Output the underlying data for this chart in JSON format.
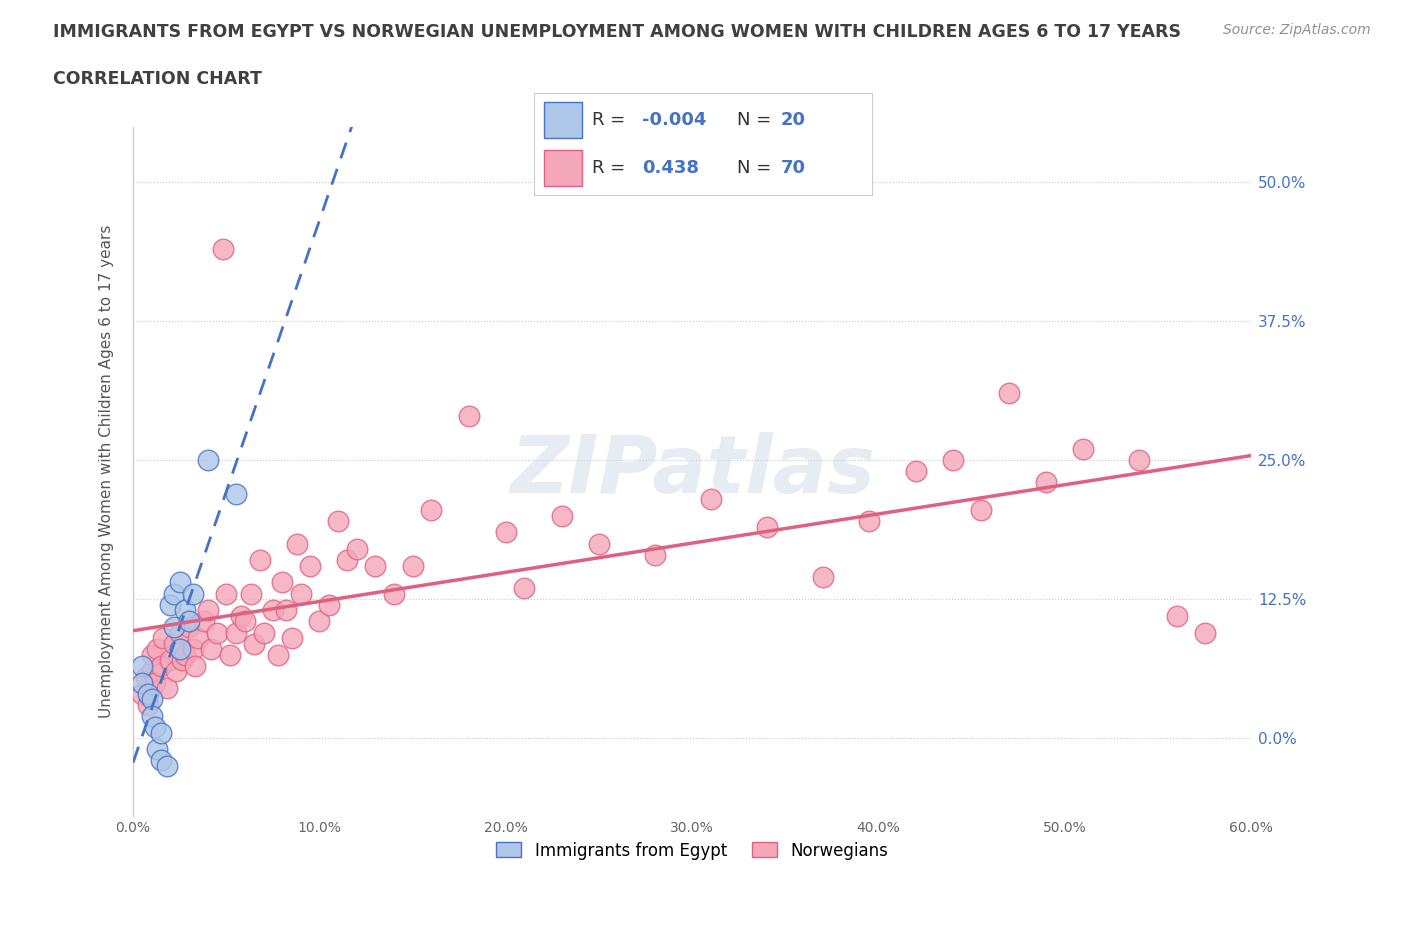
{
  "title_line1": "IMMIGRANTS FROM EGYPT VS NORWEGIAN UNEMPLOYMENT AMONG WOMEN WITH CHILDREN AGES 6 TO 17 YEARS",
  "title_line2": "CORRELATION CHART",
  "source": "Source: ZipAtlas.com",
  "ylabel": "Unemployment Among Women with Children Ages 6 to 17 years",
  "xlim": [
    0.0,
    0.6
  ],
  "ylim": [
    -0.07,
    0.55
  ],
  "yticks": [
    0.0,
    0.125,
    0.25,
    0.375,
    0.5
  ],
  "ytick_labels": [
    "0.0%",
    "12.5%",
    "25.0%",
    "37.5%",
    "50.0%"
  ],
  "xticks": [
    0.0,
    0.1,
    0.2,
    0.3,
    0.4,
    0.5,
    0.6
  ],
  "xtick_labels": [
    "0.0%",
    "10.0%",
    "20.0%",
    "30.0%",
    "40.0%",
    "50.0%",
    "60.0%"
  ],
  "egypt_R": -0.004,
  "egypt_N": 20,
  "norway_R": 0.438,
  "norway_N": 70,
  "egypt_color": "#aec6e8",
  "norway_color": "#f4a7b9",
  "egypt_line_color": "#4472c4",
  "norway_line_color": "#e06080",
  "background_color": "#ffffff",
  "watermark": "ZIPatlas",
  "grid_color": "#c8c8c8",
  "legend_R_color": "#4472c4",
  "title_color": "#404040",
  "source_color": "#909090",
  "egypt_x": [
    0.005,
    0.005,
    0.008,
    0.01,
    0.01,
    0.012,
    0.013,
    0.015,
    0.015,
    0.018,
    0.02,
    0.022,
    0.022,
    0.025,
    0.025,
    0.028,
    0.03,
    0.032,
    0.04,
    0.055
  ],
  "egypt_y": [
    0.065,
    0.05,
    0.04,
    0.035,
    0.02,
    0.01,
    -0.01,
    0.005,
    -0.02,
    -0.025,
    0.12,
    0.1,
    0.13,
    0.08,
    0.14,
    0.115,
    0.105,
    0.13,
    0.25,
    0.22
  ],
  "norway_x": [
    0.005,
    0.007,
    0.008,
    0.01,
    0.01,
    0.012,
    0.013,
    0.015,
    0.016,
    0.018,
    0.02,
    0.022,
    0.023,
    0.025,
    0.026,
    0.028,
    0.03,
    0.032,
    0.033,
    0.035,
    0.038,
    0.04,
    0.042,
    0.045,
    0.048,
    0.05,
    0.052,
    0.055,
    0.058,
    0.06,
    0.063,
    0.065,
    0.068,
    0.07,
    0.075,
    0.078,
    0.08,
    0.082,
    0.085,
    0.088,
    0.09,
    0.095,
    0.1,
    0.105,
    0.11,
    0.115,
    0.12,
    0.13,
    0.14,
    0.15,
    0.16,
    0.18,
    0.2,
    0.21,
    0.23,
    0.25,
    0.28,
    0.31,
    0.34,
    0.37,
    0.395,
    0.42,
    0.44,
    0.455,
    0.47,
    0.49,
    0.51,
    0.54,
    0.56,
    0.575
  ],
  "norway_y": [
    0.04,
    0.055,
    0.03,
    0.06,
    0.075,
    0.05,
    0.08,
    0.065,
    0.09,
    0.045,
    0.07,
    0.085,
    0.06,
    0.095,
    0.07,
    0.075,
    0.1,
    0.08,
    0.065,
    0.09,
    0.105,
    0.115,
    0.08,
    0.095,
    0.44,
    0.13,
    0.075,
    0.095,
    0.11,
    0.105,
    0.13,
    0.085,
    0.16,
    0.095,
    0.115,
    0.075,
    0.14,
    0.115,
    0.09,
    0.175,
    0.13,
    0.155,
    0.105,
    0.12,
    0.195,
    0.16,
    0.17,
    0.155,
    0.13,
    0.155,
    0.205,
    0.29,
    0.185,
    0.135,
    0.2,
    0.175,
    0.165,
    0.215,
    0.19,
    0.145,
    0.195,
    0.24,
    0.25,
    0.205,
    0.31,
    0.23,
    0.26,
    0.25,
    0.11,
    0.095
  ],
  "legend_egypt_label": "Immigrants from Egypt",
  "legend_norway_label": "Norwegians"
}
